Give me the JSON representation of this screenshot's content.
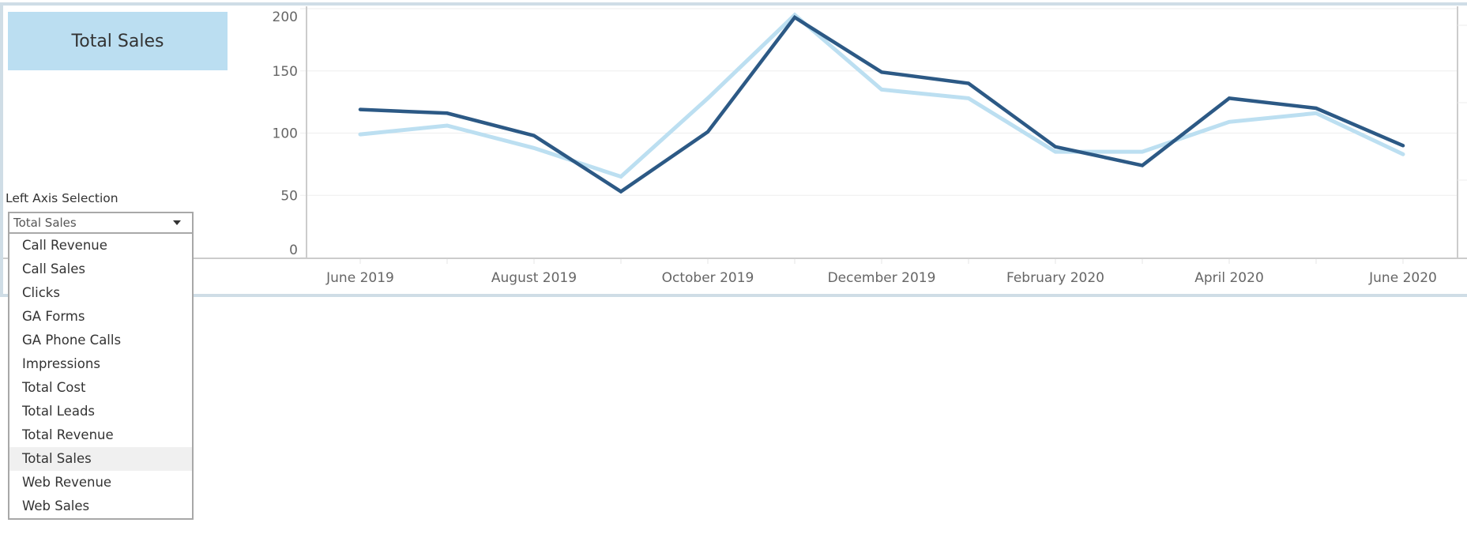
{
  "title_box": {
    "label": "Total Sales",
    "bg": "#bbdef1"
  },
  "left_axis_selection": {
    "label": "Left Axis Selection",
    "selected": "Total Sales",
    "options": [
      "Call Revenue",
      "Call Sales",
      "Clicks",
      "GA Forms",
      "GA Phone Calls",
      "Impressions",
      "Total Cost",
      "Total Leads",
      "Total Revenue",
      "Total Sales",
      "Web Revenue",
      "Web Sales"
    ]
  },
  "colors": {
    "series_dark": "#2c5985",
    "series_light": "#bcdff1",
    "grid": "#eeeeee",
    "axis": "#cccccc",
    "frame": "#cfdde6"
  },
  "chart_data": {
    "type": "line",
    "title": "Total Sales",
    "xlabel": "",
    "ylabel": "",
    "ylim": [
      0,
      200
    ],
    "yticks": [
      0,
      50,
      100,
      150,
      200
    ],
    "grid": true,
    "x": [
      "Jun 2019",
      "Jul 2019",
      "Aug 2019",
      "Sep 2019",
      "Oct 2019",
      "Nov 2019",
      "Dec 2019",
      "Jan 2020",
      "Feb 2020",
      "Mar 2020",
      "Apr 2020",
      "May 2020",
      "Jun 2020"
    ],
    "x_tick_labels": [
      "June 2019",
      "August 2019",
      "October 2019",
      "December 2019",
      "February 2020",
      "April 2020",
      "June 2020"
    ],
    "series": [
      {
        "name": "Total Sales (dark)",
        "color": "#2c5985",
        "values": [
          119,
          116,
          98,
          53,
          101,
          193,
          149,
          140,
          89,
          74,
          128,
          120,
          90
        ]
      },
      {
        "name": "Total Sales (light)",
        "color": "#bcdff1",
        "values": [
          99,
          106,
          88,
          65,
          128,
          195,
          135,
          128,
          85,
          85,
          109,
          116,
          83
        ]
      }
    ]
  }
}
